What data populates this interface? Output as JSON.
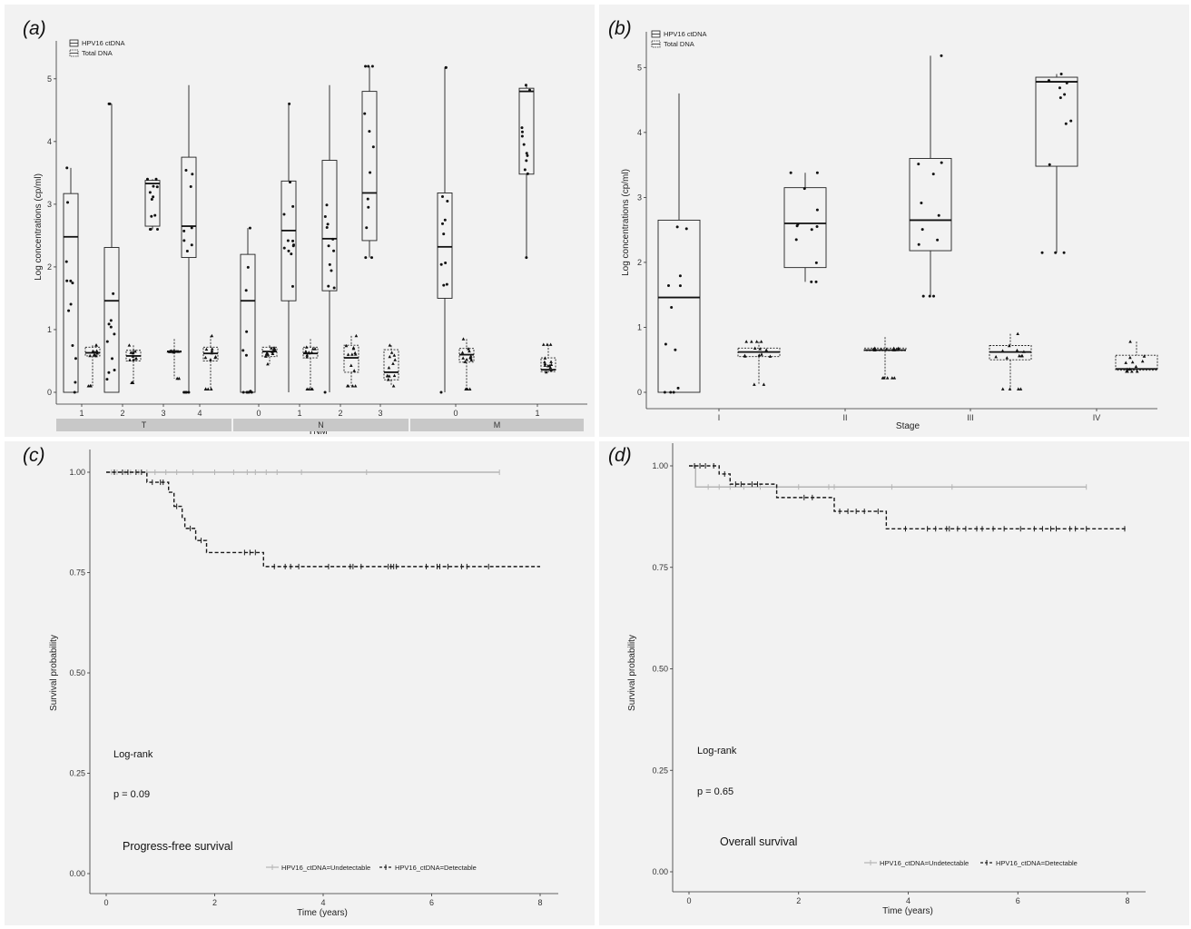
{
  "panels": {
    "a": {
      "label": "(a)"
    },
    "b": {
      "label": "(b)"
    },
    "c": {
      "label": "(c)"
    },
    "d": {
      "label": "(d)"
    }
  },
  "box_legend": {
    "hpv": "HPV16 ctDNA",
    "total": "Total DNA"
  },
  "km_legend": {
    "undetectable": "HPV16_ctDNA=Undetectable",
    "detectable": "HPV16_ctDNA=Detectable"
  },
  "colors": {
    "background": "#f2f2f2",
    "undetectable_line": "#b5b5b5",
    "detectable_line": "#1a1a1a",
    "strip": "#c8c8c8"
  },
  "chart_data": [
    {
      "id": "a",
      "type": "box",
      "ylabel": "Log concentrations (cp/ml)",
      "xlabel": "TNM",
      "ylim": [
        0,
        5.2
      ],
      "yticks": [
        0,
        1,
        2,
        3,
        4,
        5
      ],
      "facets": [
        {
          "name": "T",
          "categories": [
            "1",
            "2",
            "3",
            "4"
          ]
        },
        {
          "name": "N",
          "categories": [
            "0",
            "1",
            "2",
            "3"
          ]
        },
        {
          "name": "M",
          "categories": [
            "0",
            "1"
          ]
        }
      ],
      "series": [
        {
          "name": "HPV16 ctDNA",
          "boxes": [
            {
              "facet": "T",
              "category": "1",
              "min": 0,
              "q1": 0,
              "median": 2.48,
              "q3": 3.17,
              "max": 3.58
            },
            {
              "facet": "T",
              "category": "2",
              "min": 0,
              "q1": 0,
              "median": 1.46,
              "q3": 2.31,
              "max": 4.6
            },
            {
              "facet": "T",
              "category": "3",
              "min": 2.6,
              "q1": 2.65,
              "median": 3.33,
              "q3": 3.38,
              "max": 3.4
            },
            {
              "facet": "T",
              "category": "4",
              "min": 0,
              "q1": 2.15,
              "median": 2.65,
              "q3": 3.75,
              "max": 4.9
            },
            {
              "facet": "N",
              "category": "0",
              "min": 0,
              "q1": 0,
              "median": 1.46,
              "q3": 2.2,
              "max": 2.62
            },
            {
              "facet": "N",
              "category": "1",
              "min": 0,
              "q1": 1.46,
              "median": 2.58,
              "q3": 3.37,
              "max": 4.6
            },
            {
              "facet": "N",
              "category": "2",
              "min": 0,
              "q1": 1.62,
              "median": 2.45,
              "q3": 3.7,
              "max": 4.9
            },
            {
              "facet": "N",
              "category": "3",
              "min": 2.15,
              "q1": 2.42,
              "median": 3.18,
              "q3": 4.8,
              "max": 5.2
            },
            {
              "facet": "M",
              "category": "0",
              "min": 0,
              "q1": 1.5,
              "median": 2.32,
              "q3": 3.18,
              "max": 5.18
            },
            {
              "facet": "M",
              "category": "1",
              "min": 2.15,
              "q1": 3.48,
              "median": 4.8,
              "q3": 4.85,
              "max": 4.9
            }
          ]
        },
        {
          "name": "Total DNA",
          "boxes": [
            {
              "facet": "T",
              "category": "1",
              "min": 0.1,
              "q1": 0.58,
              "median": 0.63,
              "q3": 0.72,
              "max": 0.75
            },
            {
              "facet": "T",
              "category": "2",
              "min": 0.15,
              "q1": 0.5,
              "median": 0.58,
              "q3": 0.67,
              "max": 0.75
            },
            {
              "facet": "T",
              "category": "3",
              "min": 0.22,
              "q1": 0.64,
              "median": 0.65,
              "q3": 0.66,
              "max": 0.85
            },
            {
              "facet": "T",
              "category": "4",
              "min": 0.05,
              "q1": 0.5,
              "median": 0.62,
              "q3": 0.72,
              "max": 0.9
            },
            {
              "facet": "N",
              "category": "0",
              "min": 0.45,
              "q1": 0.57,
              "median": 0.65,
              "q3": 0.72,
              "max": 0.75
            },
            {
              "facet": "N",
              "category": "1",
              "min": 0.05,
              "q1": 0.55,
              "median": 0.62,
              "q3": 0.72,
              "max": 0.85
            },
            {
              "facet": "N",
              "category": "2",
              "min": 0.1,
              "q1": 0.32,
              "median": 0.55,
              "q3": 0.75,
              "max": 0.9
            },
            {
              "facet": "N",
              "category": "3",
              "min": 0.1,
              "q1": 0.2,
              "median": 0.32,
              "q3": 0.68,
              "max": 0.75
            },
            {
              "facet": "M",
              "category": "0",
              "min": 0.05,
              "q1": 0.48,
              "median": 0.6,
              "q3": 0.7,
              "max": 0.85
            },
            {
              "facet": "M",
              "category": "1",
              "min": 0.32,
              "q1": 0.33,
              "median": 0.36,
              "q3": 0.55,
              "max": 0.76
            }
          ]
        }
      ]
    },
    {
      "id": "b",
      "type": "box",
      "ylabel": "Log concentrations (cp/ml)",
      "xlabel": "Stage",
      "ylim": [
        0,
        5.2
      ],
      "yticks": [
        0,
        1,
        2,
        3,
        4,
        5
      ],
      "categories": [
        "I",
        "II",
        "III",
        "IV"
      ],
      "series": [
        {
          "name": "HPV16 ctDNA",
          "boxes": [
            {
              "category": "I",
              "min": 0,
              "q1": 0,
              "median": 1.46,
              "q3": 2.65,
              "max": 4.6
            },
            {
              "category": "II",
              "min": 1.7,
              "q1": 1.92,
              "median": 2.6,
              "q3": 3.15,
              "max": 3.38
            },
            {
              "category": "III",
              "min": 1.48,
              "q1": 2.18,
              "median": 2.65,
              "q3": 3.6,
              "max": 5.18
            },
            {
              "category": "IV",
              "min": 2.15,
              "q1": 3.48,
              "median": 4.78,
              "q3": 4.85,
              "max": 4.9
            }
          ]
        },
        {
          "name": "Total DNA",
          "boxes": [
            {
              "category": "I",
              "min": 0.12,
              "q1": 0.55,
              "median": 0.62,
              "q3": 0.68,
              "max": 0.78
            },
            {
              "category": "II",
              "min": 0.22,
              "q1": 0.64,
              "median": 0.65,
              "q3": 0.68,
              "max": 0.85
            },
            {
              "category": "III",
              "min": 0.05,
              "q1": 0.5,
              "median": 0.62,
              "q3": 0.72,
              "max": 0.9
            },
            {
              "category": "IV",
              "min": 0.32,
              "q1": 0.34,
              "median": 0.36,
              "q3": 0.57,
              "max": 0.78
            }
          ]
        }
      ]
    },
    {
      "id": "c",
      "type": "line",
      "subtype": "kaplan-meier",
      "ylabel": "Survival probability",
      "xlabel": "Time (years)",
      "xlim": [
        0,
        8
      ],
      "ylim": [
        0,
        1
      ],
      "xticks": [
        0,
        2,
        4,
        6,
        8
      ],
      "yticks": [
        "0.00",
        "0.25",
        "0.50",
        "0.75",
        "1.00"
      ],
      "annotations": {
        "test": "Log-rank",
        "p": "p = 0.09",
        "title": "Progress-free survival"
      },
      "series": [
        {
          "name": "HPV16_ctDNA=Undetectable",
          "steps": [
            [
              0,
              1
            ],
            [
              7.25,
              1
            ]
          ],
          "censor": [
            0.1,
            0.2,
            0.35,
            0.45,
            0.6,
            0.75,
            0.9,
            1.1,
            1.3,
            1.6,
            2.0,
            2.35,
            2.6,
            2.75,
            2.95,
            3.15,
            3.6,
            4.8,
            7.25
          ]
        },
        {
          "name": "HPV16_ctDNA=Detectable",
          "steps": [
            [
              0,
              1
            ],
            [
              0.75,
              1
            ],
            [
              0.75,
              0.975
            ],
            [
              1.15,
              0.975
            ],
            [
              1.15,
              0.95
            ],
            [
              1.25,
              0.95
            ],
            [
              1.25,
              0.915
            ],
            [
              1.4,
              0.915
            ],
            [
              1.4,
              0.885
            ],
            [
              1.45,
              0.885
            ],
            [
              1.45,
              0.86
            ],
            [
              1.65,
              0.86
            ],
            [
              1.65,
              0.83
            ],
            [
              1.85,
              0.83
            ],
            [
              1.85,
              0.8
            ],
            [
              2.9,
              0.8
            ],
            [
              2.9,
              0.765
            ],
            [
              8,
              0.765
            ]
          ],
          "censor": [
            0.15,
            0.3,
            0.4,
            0.55,
            0.65,
            0.85,
            1.0,
            1.05,
            1.3,
            1.55,
            1.75,
            2.55,
            2.65,
            2.75,
            3.1,
            3.3,
            3.4,
            3.55,
            4.1,
            4.5,
            4.55,
            4.7,
            5.2,
            5.25,
            5.3,
            5.35,
            5.9,
            6.1,
            6.15,
            6.3,
            6.55,
            6.65,
            7.05
          ]
        }
      ]
    },
    {
      "id": "d",
      "type": "line",
      "subtype": "kaplan-meier",
      "ylabel": "Survival probability",
      "xlabel": "Time (years)",
      "xlim": [
        0,
        8
      ],
      "ylim": [
        0,
        1
      ],
      "xticks": [
        0,
        2,
        4,
        6,
        8
      ],
      "yticks": [
        "0.00",
        "0.25",
        "0.50",
        "0.75",
        "1.00"
      ],
      "annotations": {
        "test": "Log-rank",
        "p": "p = 0.65",
        "title": "Overall survival"
      },
      "series": [
        {
          "name": "HPV16_ctDNA=Undetectable",
          "steps": [
            [
              0,
              1
            ],
            [
              0.12,
              1
            ],
            [
              0.12,
              0.948
            ],
            [
              7.25,
              0.948
            ]
          ],
          "censor": [
            0.35,
            0.55,
            0.75,
            1.0,
            1.3,
            1.6,
            2.0,
            2.55,
            2.65,
            3.7,
            4.8,
            7.25
          ]
        },
        {
          "name": "HPV16_ctDNA=Detectable",
          "steps": [
            [
              0,
              1
            ],
            [
              0.55,
              1
            ],
            [
              0.55,
              0.98
            ],
            [
              0.75,
              0.98
            ],
            [
              0.75,
              0.955
            ],
            [
              1.6,
              0.955
            ],
            [
              1.6,
              0.922
            ],
            [
              2.65,
              0.922
            ],
            [
              2.65,
              0.888
            ],
            [
              3.6,
              0.888
            ],
            [
              3.6,
              0.845
            ],
            [
              8,
              0.845
            ]
          ],
          "censor": [
            0.1,
            0.2,
            0.3,
            0.45,
            0.65,
            0.85,
            0.95,
            1.15,
            1.25,
            2.1,
            2.25,
            2.75,
            2.9,
            3.05,
            3.2,
            3.45,
            3.95,
            4.35,
            4.5,
            4.7,
            4.75,
            4.9,
            5.05,
            5.25,
            5.35,
            5.55,
            5.75,
            6.05,
            6.3,
            6.45,
            6.6,
            6.7,
            6.95,
            7.05,
            7.25,
            7.95
          ]
        }
      ]
    }
  ]
}
